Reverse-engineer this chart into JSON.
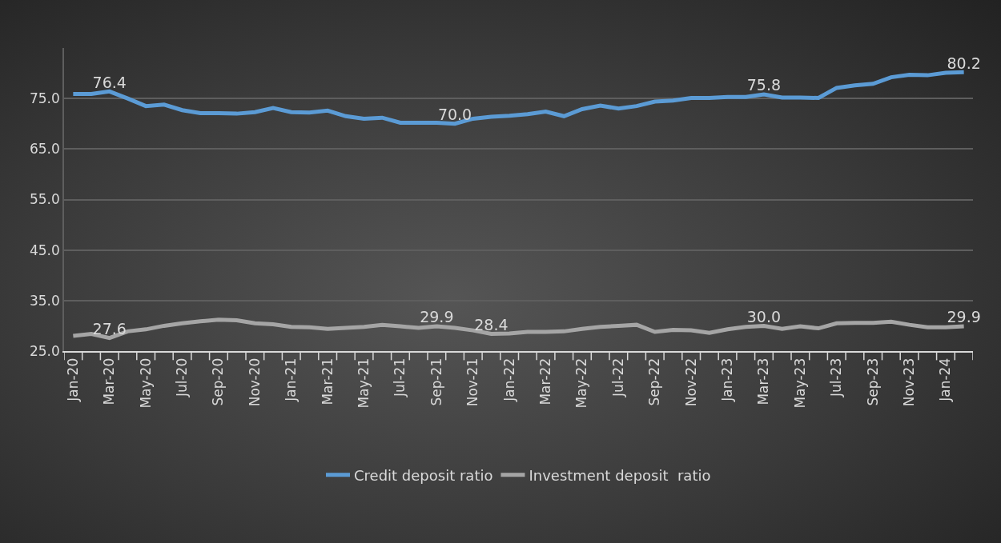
{
  "chart_data": {
    "type": "line",
    "categories": [
      "Jan-20",
      null,
      "Mar-20",
      null,
      "May-20",
      null,
      "Jul-20",
      null,
      "Sep-20",
      null,
      "Nov-20",
      null,
      "Jan-21",
      null,
      "Mar-21",
      null,
      "May-21",
      null,
      "Jul-21",
      null,
      "Sep-21",
      null,
      "Nov-21",
      null,
      "Jan-22",
      null,
      "Mar-22",
      null,
      "May-22",
      null,
      "Jul-22",
      null,
      "Sep-22",
      null,
      "Nov-22",
      null,
      "Jan-23",
      null,
      "Mar-23",
      null,
      "May-23",
      null,
      "Jul-23",
      null,
      "Sep-23",
      null,
      "Nov-23",
      null,
      "Jan-24",
      null
    ],
    "series": [
      {
        "name": "Credit deposit ratio",
        "color": "#5b9bd5",
        "values": [
          75.9,
          75.9,
          76.4,
          75.0,
          73.5,
          73.8,
          72.7,
          72.1,
          72.1,
          72.0,
          72.3,
          73.1,
          72.3,
          72.2,
          72.6,
          71.5,
          71.0,
          71.2,
          70.2,
          70.2,
          70.2,
          70.0,
          71.0,
          71.4,
          71.6,
          71.9,
          72.4,
          71.5,
          72.9,
          73.6,
          73.0,
          73.5,
          74.4,
          74.6,
          75.1,
          75.1,
          75.3,
          75.3,
          75.8,
          75.2,
          75.2,
          75.1,
          77.1,
          77.6,
          77.9,
          79.2,
          79.7,
          79.6,
          80.1,
          80.2
        ],
        "value_labels": [
          null,
          null,
          "76.4",
          null,
          null,
          null,
          null,
          null,
          null,
          null,
          null,
          null,
          null,
          null,
          null,
          null,
          null,
          null,
          null,
          null,
          null,
          "70.0",
          null,
          null,
          null,
          null,
          null,
          null,
          null,
          null,
          null,
          null,
          null,
          null,
          null,
          null,
          null,
          null,
          "75.8",
          null,
          null,
          null,
          null,
          null,
          null,
          null,
          null,
          null,
          null,
          "80.2"
        ]
      },
      {
        "name": "Investment deposit  ratio",
        "color": "#a5a5a5",
        "values": [
          28.0,
          28.4,
          27.6,
          28.9,
          29.3,
          30.0,
          30.5,
          30.9,
          31.2,
          31.1,
          30.5,
          30.3,
          29.8,
          29.7,
          29.4,
          29.6,
          29.8,
          30.2,
          29.9,
          29.6,
          29.9,
          29.6,
          29.1,
          28.4,
          28.5,
          28.8,
          28.8,
          28.9,
          29.4,
          29.8,
          30.0,
          30.2,
          28.8,
          29.2,
          29.1,
          28.6,
          29.3,
          29.8,
          30.0,
          29.4,
          29.9,
          29.5,
          30.5,
          30.6,
          30.6,
          30.8,
          30.2,
          29.7,
          29.7,
          29.9
        ],
        "value_labels": [
          null,
          null,
          "27.6",
          null,
          null,
          null,
          null,
          null,
          null,
          null,
          null,
          null,
          null,
          null,
          null,
          null,
          null,
          null,
          null,
          null,
          "29.9",
          null,
          null,
          "28.4",
          null,
          null,
          null,
          null,
          null,
          null,
          null,
          null,
          null,
          null,
          null,
          null,
          null,
          null,
          "30.0",
          null,
          null,
          null,
          null,
          null,
          null,
          null,
          null,
          null,
          null,
          "29.9"
        ]
      }
    ],
    "ylim": [
      25,
      85
    ],
    "yticks": [
      {
        "value": 25,
        "label": "25.0"
      },
      {
        "value": 35,
        "label": "35.0"
      },
      {
        "value": 45,
        "label": "45.0"
      },
      {
        "value": 55,
        "label": "55.0"
      },
      {
        "value": 65,
        "label": "65.0"
      },
      {
        "value": 75,
        "label": "75.0"
      }
    ],
    "grid": "y",
    "legend": "bottom",
    "marker": "none",
    "line_style": "solid"
  }
}
